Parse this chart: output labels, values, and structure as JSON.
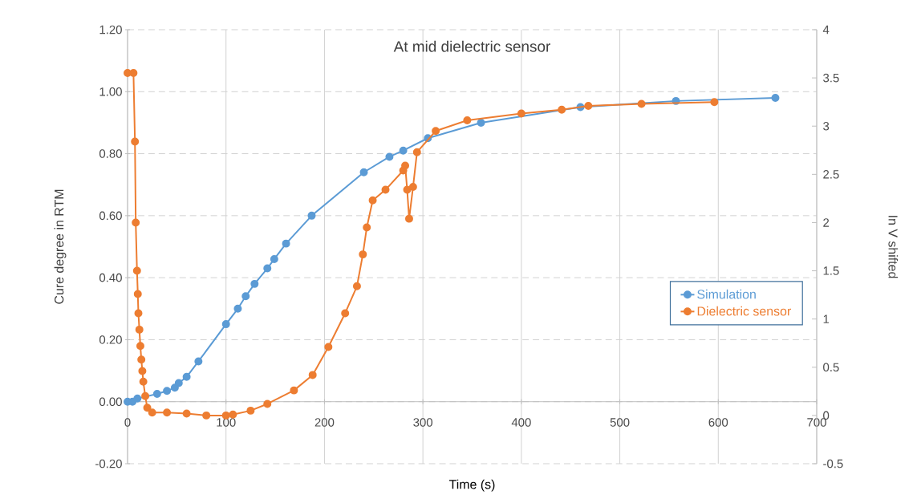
{
  "chart_data": {
    "type": "line",
    "title": "At mid dielectric sensor",
    "xlabel": "Time (s)",
    "ylabel": "Cure degree in RTM",
    "y2label": "In V shifted",
    "xlim": [
      0,
      700
    ],
    "xticks": [
      0,
      100,
      200,
      300,
      400,
      500,
      600,
      700
    ],
    "ylim": [
      -0.2,
      1.2
    ],
    "yticks": [
      {
        "value": -0.2,
        "label": "-0.20"
      },
      {
        "value": 0,
        "label": "0.00"
      },
      {
        "value": 0.2,
        "label": "0.20"
      },
      {
        "value": 0.4,
        "label": "0.40"
      },
      {
        "value": 0.6,
        "label": "0.60"
      },
      {
        "value": 0.8,
        "label": "0.80"
      },
      {
        "value": 1.0,
        "label": "1.00"
      },
      {
        "value": 1.2,
        "label": "1.20"
      }
    ],
    "y2lim": [
      -0.5,
      4
    ],
    "y2ticks": [
      -0.5,
      0,
      0.5,
      1,
      1.5,
      2,
      2.5,
      3,
      3.5,
      4
    ],
    "grid": true,
    "legend": "right",
    "marker": "circle",
    "line_style": "solid",
    "series": [
      {
        "name": "Simulation",
        "color": "#5b9bd5",
        "x": [
          0,
          5,
          10,
          30,
          40,
          48,
          52,
          60,
          72,
          100,
          112,
          120,
          129,
          142,
          149,
          161,
          187,
          240,
          266,
          280,
          305,
          359,
          460,
          557,
          658
        ],
        "values": [
          0,
          0,
          0.01,
          0.025,
          0.035,
          0.045,
          0.06,
          0.08,
          0.13,
          0.25,
          0.3,
          0.34,
          0.38,
          0.43,
          0.46,
          0.51,
          0.6,
          0.74,
          0.79,
          0.81,
          0.85,
          0.9,
          0.95,
          0.97,
          0.98
        ]
      },
      {
        "name": "Dielectric sensor",
        "color": "#ed7d31",
        "axis": "y2",
        "x": [
          0,
          6,
          7.5,
          8.3,
          9.6,
          10.4,
          11,
          12,
          13,
          14,
          15,
          16,
          18,
          20,
          25,
          40,
          60,
          80,
          100,
          107,
          125,
          142,
          169,
          188,
          204,
          221,
          233,
          239,
          243,
          249,
          262,
          280,
          282,
          284,
          286,
          290,
          294,
          313,
          345,
          400,
          441,
          468,
          522,
          596
        ],
        "values": [
          3.55,
          3.55,
          2.84,
          2.0,
          1.5,
          1.26,
          1.06,
          0.89,
          0.72,
          0.58,
          0.46,
          0.35,
          0.2,
          0.08,
          0.03,
          0.03,
          0.02,
          0.0,
          0.0,
          0.01,
          0.05,
          0.12,
          0.26,
          0.42,
          0.71,
          1.06,
          1.34,
          1.67,
          1.95,
          2.23,
          2.34,
          2.54,
          2.59,
          2.34,
          2.04,
          2.37,
          2.73,
          2.95,
          3.06,
          3.13,
          3.17,
          3.21,
          3.23,
          3.25
        ]
      }
    ]
  }
}
